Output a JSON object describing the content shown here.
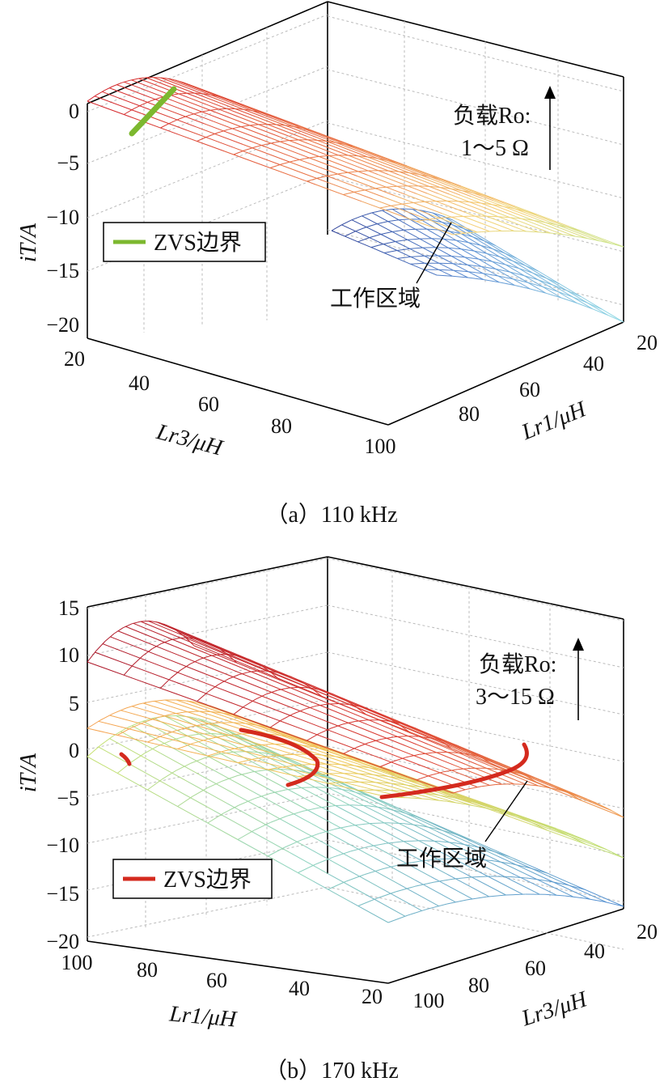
{
  "chart_data": [
    {
      "type": "surface3d",
      "panel_label": "（a）110 kHz",
      "zlabel": "iT/A",
      "z_ticks": [
        "0",
        "−5",
        "−10",
        "−15",
        "−20"
      ],
      "z_values": [
        0,
        -5,
        -10,
        -15,
        -20
      ],
      "zlim": [
        -20,
        2
      ],
      "left_axis": {
        "label": "Lr3/μH",
        "ticks": [
          "20",
          "40",
          "60",
          "80",
          "100"
        ]
      },
      "right_axis": {
        "label": "Lr1/μH",
        "ticks": [
          "20",
          "40",
          "60",
          "80"
        ]
      },
      "legend": {
        "label": "ZVS边界",
        "color": "#7cb82f",
        "placement": "left"
      },
      "annotation": {
        "line1": "负载Ro:",
        "line2": "1～5 Ω"
      },
      "region_label": "工作区域",
      "grid": true
    },
    {
      "type": "surface3d",
      "panel_label": "（b）170 kHz",
      "zlabel": "iT/A",
      "z_ticks": [
        "15",
        "10",
        "5",
        "0",
        "−5",
        "−10",
        "−15",
        "−20"
      ],
      "z_values": [
        15,
        10,
        5,
        0,
        -5,
        -10,
        -15,
        -20
      ],
      "zlim": [
        -20,
        15
      ],
      "left_axis": {
        "label": "Lr1/μH",
        "ticks": [
          "100",
          "80",
          "60",
          "40",
          "20"
        ]
      },
      "right_axis": {
        "label": "Lr3/μH",
        "ticks": [
          "100",
          "80",
          "60",
          "40",
          "20"
        ]
      },
      "legend": {
        "label": "ZVS边界",
        "color": "#d42a1e",
        "placement": "left"
      },
      "annotation": {
        "line1": "负载Ro:",
        "line2": "3～15 Ω"
      },
      "region_label": "工作区域",
      "grid": true
    }
  ]
}
